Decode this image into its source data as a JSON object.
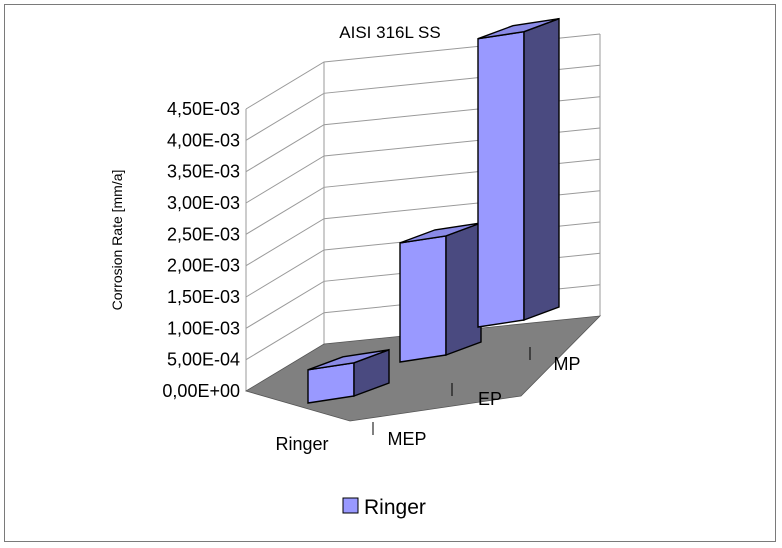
{
  "chart_data": {
    "type": "bar",
    "title": "AISI 316L SS",
    "ylabel": "Corrosion Rate [mm/a]",
    "xlabel": "",
    "categories": [
      "MEP",
      "EP",
      "MP"
    ],
    "depth_label": "Ringer",
    "series": [
      {
        "name": "Ringer",
        "values": [
          0.00053,
          0.0019,
          0.0046
        ]
      }
    ],
    "ylim": [
      0,
      0.0045
    ],
    "yticks": [
      "0,00E+00",
      "5,00E-04",
      "1,00E-03",
      "1,50E-03",
      "2,00E-03",
      "2,50E-03",
      "3,00E-03",
      "3,50E-03",
      "4,00E-03",
      "4,50E-03"
    ],
    "grid": true,
    "legend_position": "bottom",
    "colors": {
      "bar_front": "#9999ff",
      "bar_top": "#8a8ae6",
      "bar_side": "#4a4a80",
      "floor": "#808080",
      "gridline": "#9a9a9a",
      "frame": "#7a7a7a"
    }
  }
}
